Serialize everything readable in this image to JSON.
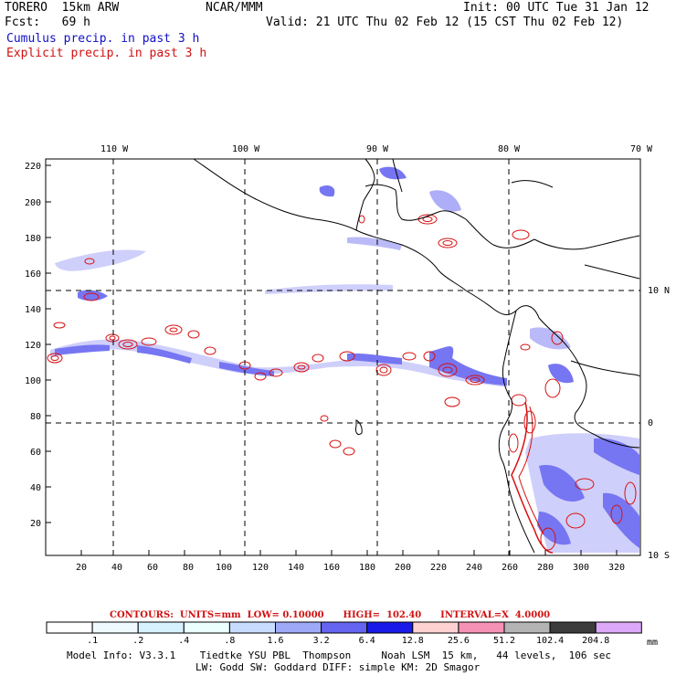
{
  "header": {
    "model": "TORERO  15km ARW",
    "center": "NCAR/MMM",
    "init": "Init: 00 UTC Tue 31 Jan 12",
    "fcst": "Fcst:   69 h",
    "valid": "Valid: 21 UTC Thu 02 Feb 12 (15 CST Thu 02 Feb 12)",
    "field1": "Cumulus precip. in past 3 h",
    "field2": "Explicit precip. in past 3 h"
  },
  "map": {
    "top_lon_labels": [
      "110 W",
      "100 W",
      "90 W",
      "80 W",
      "70 W"
    ],
    "right_lat_labels": [
      "10 N",
      "0",
      "10 S"
    ],
    "left_ticks": [
      "220",
      "200",
      "180",
      "160",
      "140",
      "120",
      "100",
      "80",
      "60",
      "40",
      "20"
    ],
    "bottom_ticks": [
      "20",
      "40",
      "60",
      "80",
      "100",
      "120",
      "140",
      "160",
      "180",
      "200",
      "220",
      "240",
      "260",
      "280",
      "300",
      "320"
    ],
    "colors": {
      "land": "#000000",
      "grid": "#000000",
      "cumulus": "#2828e6",
      "explicit": "#d81010"
    }
  },
  "legend": {
    "contours_line": "CONTOURS:  UNITS=mm  LOW= 0.10000      HIGH=  102.40      INTERVAL=X  4.0000",
    "values": [
      ".1",
      ".2",
      ".4",
      ".8",
      "1.6",
      "3.2",
      "6.4",
      "12.8",
      "25.6",
      "51.2",
      "102.4",
      "204.8"
    ],
    "unit": "mm",
    "colors": [
      "#ffffff",
      "#eefaff",
      "#d7f2ff",
      "#ebffff",
      "#c8dcff",
      "#9ea9f8",
      "#6464f0",
      "#1a1ae8",
      "#ffd2d2",
      "#f591b4",
      "#b4b4b4",
      "#3c3c3c",
      "#dca8f8"
    ]
  },
  "footer": {
    "line1": "Model Info: V3.3.1    Tiedtke YSU PBL  Thompson     Noah LSM  15 km,   44 levels,  106 sec",
    "line2": "LW: Godd SW: Goddard DIFF: simple KM: 2D Smagor"
  }
}
